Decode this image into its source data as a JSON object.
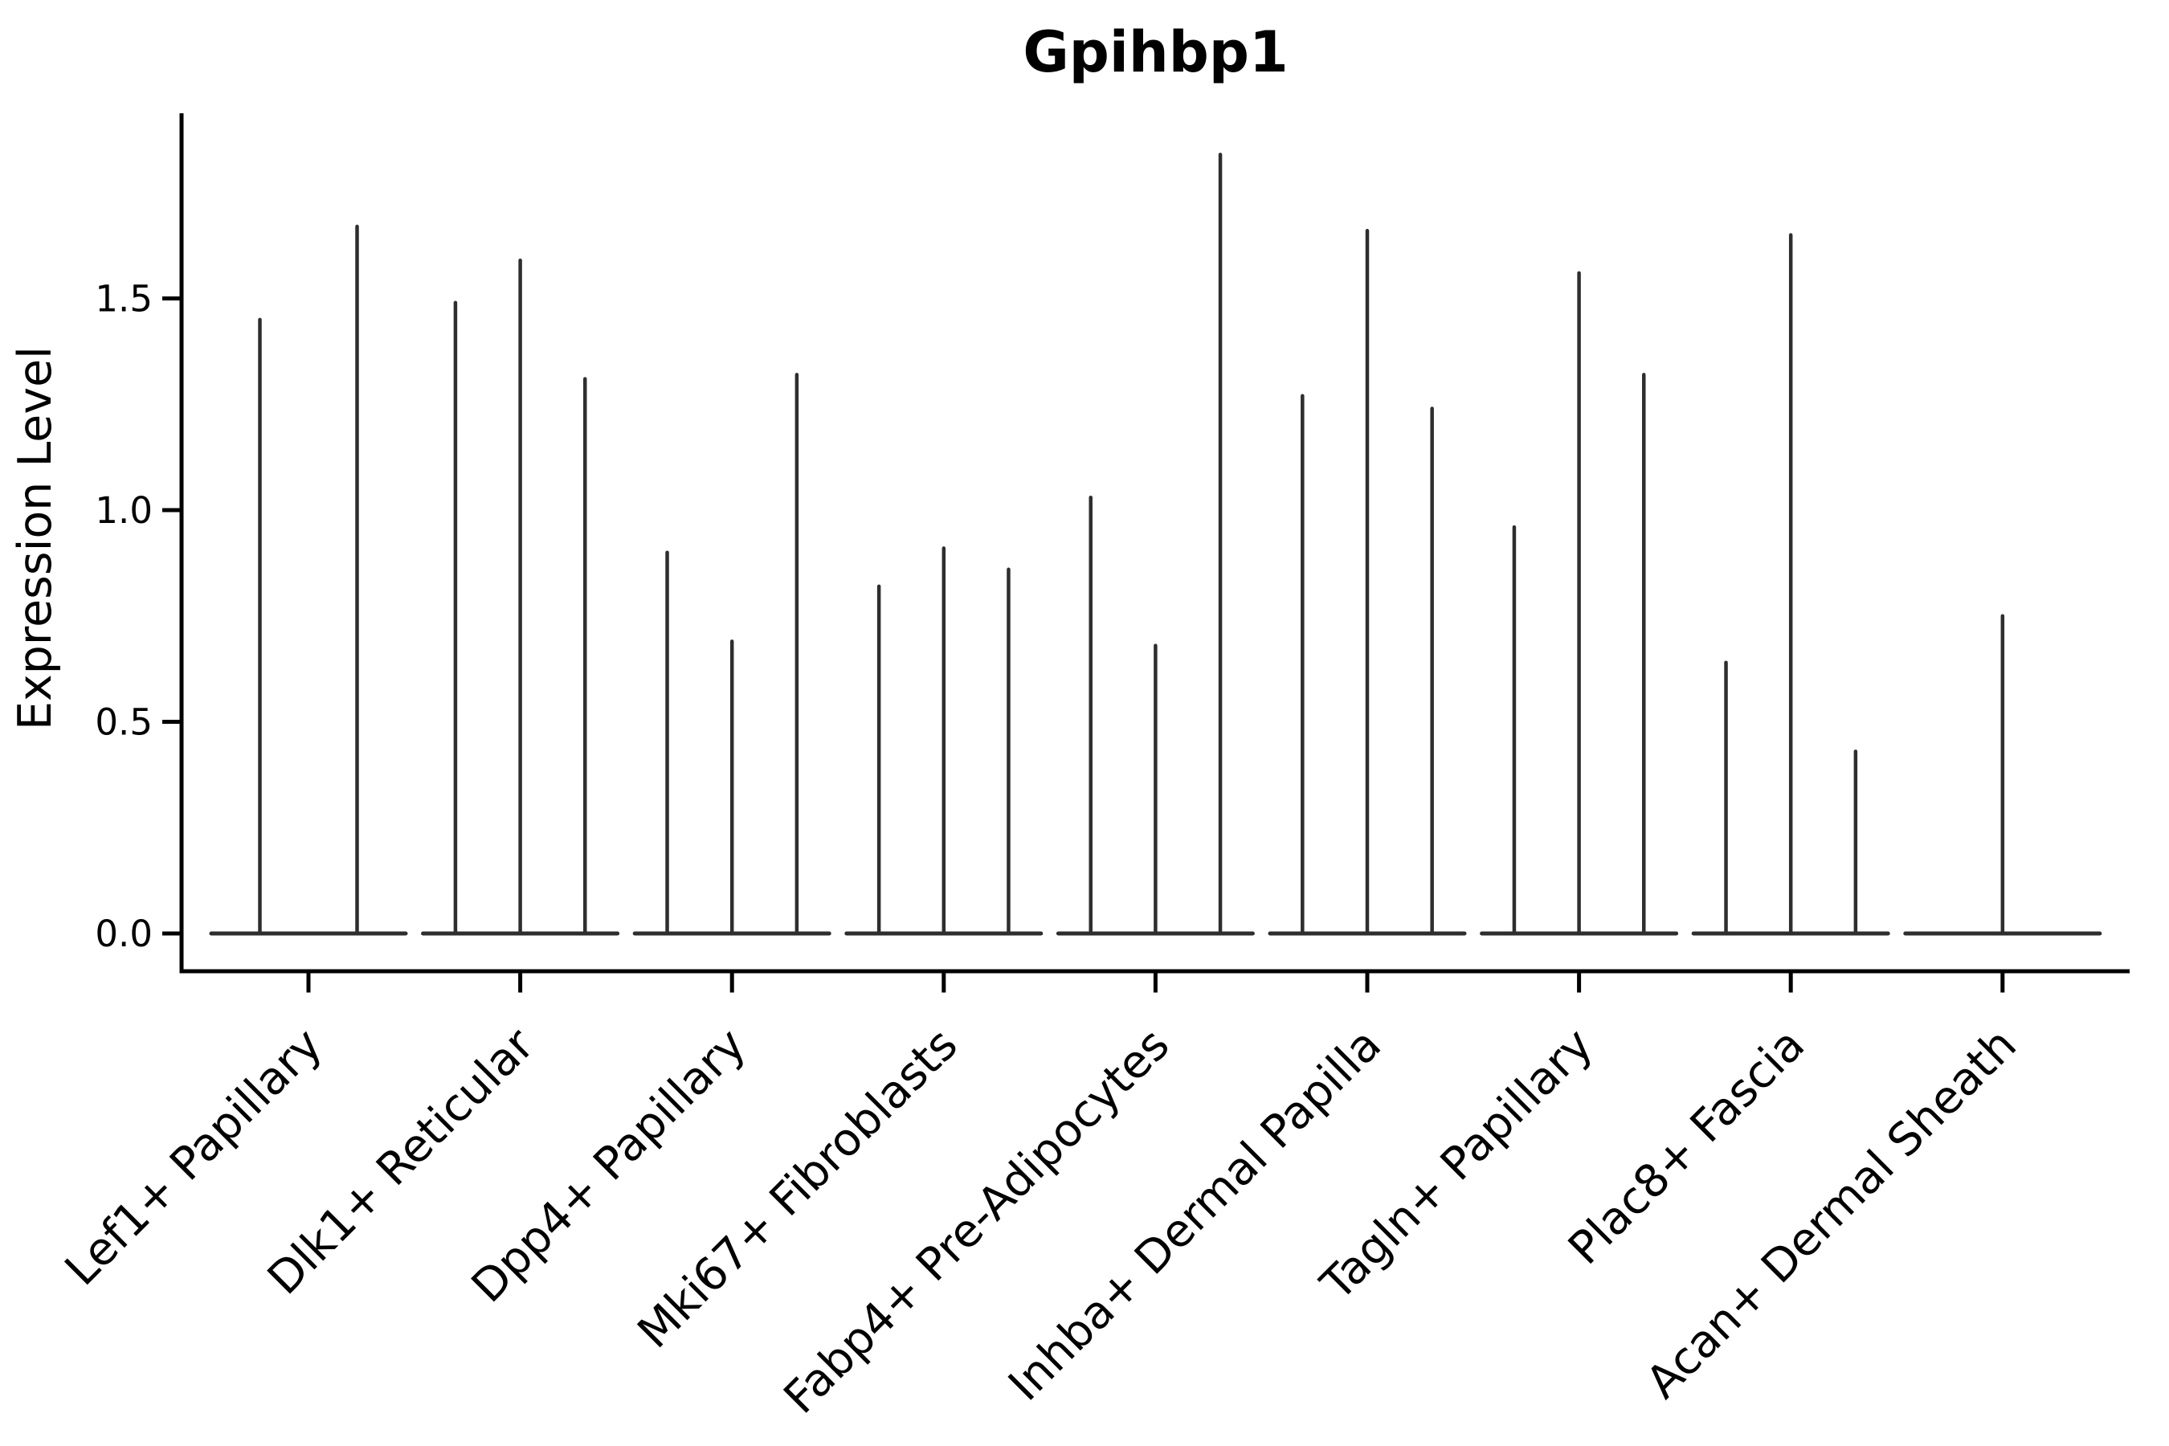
{
  "figure": {
    "background_color": "#ffffff"
  },
  "chart_data": {
    "type": "violin",
    "title": "Gpihbp1",
    "ylabel": "Expression Level",
    "xlabel": "",
    "yticks": [
      0.0,
      0.5,
      1.0,
      1.5
    ],
    "ylim": [
      -0.09,
      1.94
    ],
    "grid": false,
    "legend": false,
    "x_tick_label_rotation_deg": 45,
    "categories": [
      "Lef1+ Papillary",
      "Dlk1+ Reticular",
      "Dpp4+ Papillary",
      "Mki67+ Fibroblasts",
      "Fabp4+ Pre-Adipocytes",
      "Inhba+ Dermal Papilla",
      "Tagln+ Papillary",
      "Plac8+ Fascia",
      "Acan+ Dermal Sheath"
    ],
    "series": [
      {
        "category": "Lef1+ Papillary",
        "violin_peaks": [
          1.45,
          1.67
        ]
      },
      {
        "category": "Dlk1+ Reticular",
        "violin_peaks": [
          1.49,
          1.59,
          1.31
        ]
      },
      {
        "category": "Dpp4+ Papillary",
        "violin_peaks": [
          0.9,
          0.69,
          1.32
        ]
      },
      {
        "category": "Mki67+ Fibroblasts",
        "violin_peaks": [
          0.82,
          0.91,
          0.86
        ]
      },
      {
        "category": "Fabp4+ Pre-Adipocytes",
        "violin_peaks": [
          1.03,
          0.68,
          1.84
        ]
      },
      {
        "category": "Inhba+ Dermal Papilla",
        "violin_peaks": [
          1.27,
          1.66,
          1.24
        ]
      },
      {
        "category": "Tagln+ Papillary",
        "violin_peaks": [
          0.96,
          1.56,
          1.32
        ]
      },
      {
        "category": "Plac8+ Fascia",
        "violin_peaks": [
          0.64,
          1.65,
          0.43
        ]
      },
      {
        "category": "Acan+ Dermal Sheath",
        "violin_peaks": [
          0.75
        ]
      }
    ],
    "description": "Each category shows flattened violin(s): a wide flat base at expression 0 with a thin spike rising to the listed peak expression value.",
    "colors": {
      "violin": "#2e2e2e",
      "axis": "#000000",
      "text": "#000000"
    }
  }
}
